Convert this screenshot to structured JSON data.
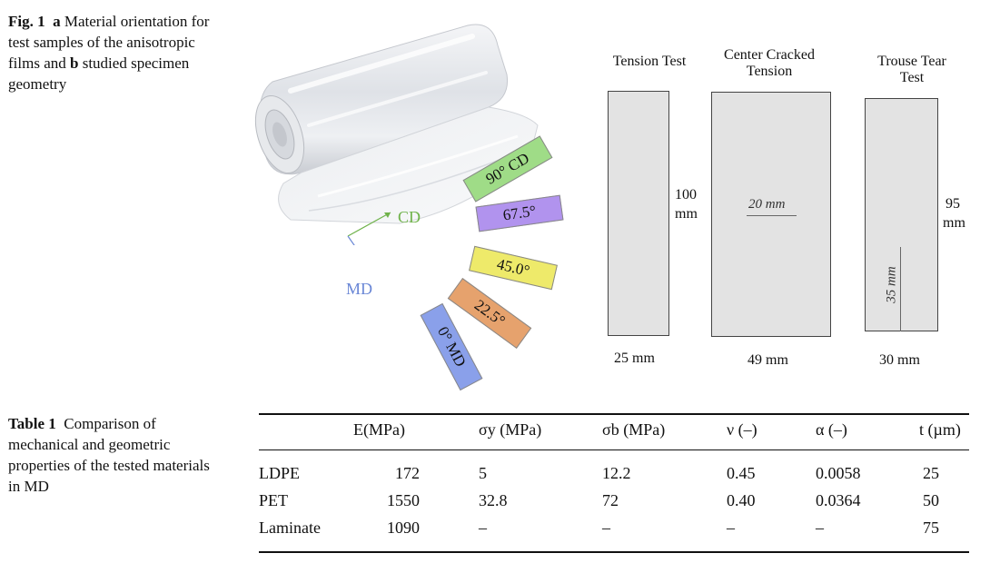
{
  "figure": {
    "label": "Fig. 1",
    "caption_a_marker": "a",
    "caption_a": "Material orientation for test samples of the anisotropic films and",
    "caption_b_marker": "b",
    "caption_b": "studied specimen geometry",
    "panel_a": {
      "strips": [
        {
          "label": "90° CD",
          "color": "#9fdc87"
        },
        {
          "label": "67.5°",
          "color": "#b193ee"
        },
        {
          "label": "45.0°",
          "color": "#eeea6a"
        },
        {
          "label": "22.5°",
          "color": "#e6a26d"
        },
        {
          "label": "0° MD",
          "color": "#8aa0ea"
        }
      ],
      "cd_label": "CD",
      "md_label": "MD",
      "cd_color": "#6fb24a",
      "md_color": "#6a87d6"
    },
    "panel_b": {
      "tension": {
        "title": "Tension Test",
        "height": "100",
        "height_unit": "mm",
        "width": "25 mm"
      },
      "cct": {
        "title_line1": "Center Cracked",
        "title_line2": "Tension",
        "crack": "20 mm",
        "width": "49 mm"
      },
      "trouser": {
        "title_line1": "Trouse Tear",
        "title_line2": "Test",
        "height": "95",
        "height_unit": "mm",
        "slit": "35 mm",
        "width": "30 mm"
      }
    }
  },
  "table": {
    "label": "Table 1",
    "caption": "Comparison of mechanical and geometric properties of the tested materials in MD",
    "headers": [
      "E(MPa)",
      "σy (MPa)",
      "σb (MPa)",
      "ν (–)",
      "α (–)",
      "t (µm)"
    ],
    "rows": [
      {
        "material": "LDPE",
        "E": "172",
        "sy": "5",
        "sb": "12.2",
        "nu": "0.45",
        "alpha": "0.0058",
        "t": "25"
      },
      {
        "material": "PET",
        "E": "1550",
        "sy": "32.8",
        "sb": "72",
        "nu": "0.40",
        "alpha": "0.0364",
        "t": "50"
      },
      {
        "material": "Laminate",
        "E": "1090",
        "sy": "–",
        "sb": "–",
        "nu": "–",
        "alpha": "–",
        "t": "75"
      }
    ]
  }
}
